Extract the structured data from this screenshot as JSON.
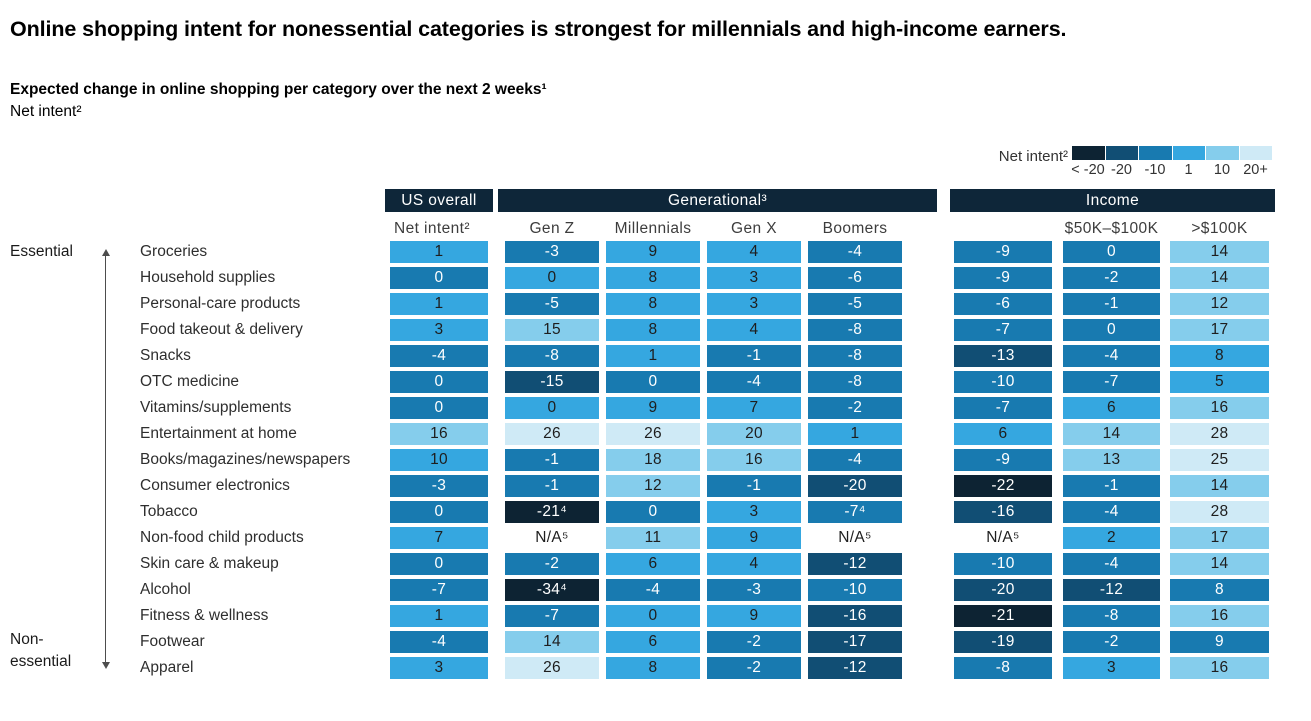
{
  "header": {
    "title": "Online shopping intent for nonessential categories is strongest for millennials and high-income earners.",
    "subtitle": "Expected change in online shopping per category over the next 2 weeks¹",
    "measure_label": "Net intent²"
  },
  "legend": {
    "label": "Net intent²",
    "buckets": [
      {
        "label": "< -20",
        "color": "#0d2333"
      },
      {
        "label": "-20",
        "color": "#114e74"
      },
      {
        "label": "-10",
        "color": "#187ab0"
      },
      {
        "label": "1",
        "color": "#35a7e0"
      },
      {
        "label": "10",
        "color": "#85cdec"
      },
      {
        "label": "20+",
        "color": "#cfeaf6"
      }
    ]
  },
  "axis_labels": {
    "top": "Essential",
    "bottom_line1": "Non-",
    "bottom_line2": "essential"
  },
  "column_groups": [
    {
      "label": "US overall",
      "columns": [
        "Net intent²"
      ]
    },
    {
      "label": "Generational³",
      "columns": [
        "Gen Z",
        "Millennials",
        "Gen X",
        "Boomers"
      ]
    },
    {
      "label": "Income",
      "columns": [
        "",
        "$50K–$100K",
        ">$100K"
      ]
    }
  ],
  "colors": {
    "header_band": "#0e2639",
    "cell_text_dark": "#1e1e1e",
    "cell_text_light": "#ffffff"
  },
  "chart_data": {
    "type": "heatmap",
    "title": "Expected change in online shopping per category over the next 2 weeks (Net intent)",
    "value_label": "Net intent²",
    "legend_position": "top-right",
    "columns": [
      "Net intent²",
      "Gen Z",
      "Millennials",
      "Gen X",
      "Boomers",
      "",
      "$50K–$100K",
      ">$100K"
    ],
    "tone_scale_labels": [
      "< -20",
      "-20",
      "-10",
      "1",
      "10",
      "20+"
    ],
    "rows": [
      {
        "category": "Groceries",
        "values": [
          "1",
          "-3",
          "9",
          "4",
          "-4",
          "-9",
          "0",
          "14"
        ],
        "tones": [
          4,
          3,
          4,
          4,
          3,
          3,
          3,
          5
        ]
      },
      {
        "category": "Household supplies",
        "values": [
          "0",
          "0",
          "8",
          "3",
          "-6",
          "-9",
          "-2",
          "14"
        ],
        "tones": [
          3,
          4,
          4,
          4,
          3,
          3,
          3,
          5
        ]
      },
      {
        "category": "Personal-care products",
        "values": [
          "1",
          "-5",
          "8",
          "3",
          "-5",
          "-6",
          "-1",
          "12"
        ],
        "tones": [
          4,
          3,
          4,
          4,
          3,
          3,
          3,
          5
        ]
      },
      {
        "category": "Food takeout & delivery",
        "values": [
          "3",
          "15",
          "8",
          "4",
          "-8",
          "-7",
          "0",
          "17"
        ],
        "tones": [
          4,
          5,
          4,
          4,
          3,
          3,
          3,
          5
        ]
      },
      {
        "category": "Snacks",
        "values": [
          "-4",
          "-8",
          "1",
          "-1",
          "-8",
          "-13",
          "-4",
          "8"
        ],
        "tones": [
          3,
          3,
          4,
          3,
          3,
          2,
          3,
          4
        ]
      },
      {
        "category": "OTC medicine",
        "values": [
          "0",
          "-15",
          "0",
          "-4",
          "-8",
          "-10",
          "-7",
          "5"
        ],
        "tones": [
          3,
          2,
          3,
          3,
          3,
          3,
          3,
          4
        ]
      },
      {
        "category": "Vitamins/supplements",
        "values": [
          "0",
          "0",
          "9",
          "7",
          "-2",
          "-7",
          "6",
          "16"
        ],
        "tones": [
          3,
          4,
          4,
          4,
          3,
          3,
          4,
          5
        ]
      },
      {
        "category": "Entertainment at home",
        "values": [
          "16",
          "26",
          "26",
          "20",
          "1",
          "6",
          "14",
          "28"
        ],
        "tones": [
          5,
          6,
          6,
          5,
          4,
          4,
          5,
          6
        ]
      },
      {
        "category": "Books/magazines/newspapers",
        "values": [
          "10",
          "-1",
          "18",
          "16",
          "-4",
          "-9",
          "13",
          "25"
        ],
        "tones": [
          4,
          3,
          5,
          5,
          3,
          3,
          5,
          6
        ]
      },
      {
        "category": "Consumer electronics",
        "values": [
          "-3",
          "-1",
          "12",
          "-1",
          "-20",
          "-22",
          "-1",
          "14"
        ],
        "tones": [
          3,
          3,
          5,
          3,
          2,
          1,
          3,
          5
        ]
      },
      {
        "category": "Tobacco",
        "values": [
          "0",
          "-21⁴",
          "0",
          "3",
          "-7⁴",
          "-16",
          "-4",
          "28"
        ],
        "tones": [
          3,
          1,
          3,
          4,
          3,
          2,
          3,
          6
        ]
      },
      {
        "category": "Non-food child products",
        "values": [
          "7",
          "N/A⁵",
          "11",
          "9",
          "N/A⁵",
          "N/A⁵",
          "2",
          "17"
        ],
        "tones": [
          4,
          0,
          5,
          4,
          0,
          0,
          4,
          5
        ]
      },
      {
        "category": "Skin care & makeup",
        "values": [
          "0",
          "-2",
          "6",
          "4",
          "-12",
          "-10",
          "-4",
          "14"
        ],
        "tones": [
          3,
          3,
          4,
          4,
          2,
          3,
          3,
          5
        ]
      },
      {
        "category": "Alcohol",
        "values": [
          "-7",
          "-34⁴",
          "-4",
          "-3",
          "-10",
          "-20",
          "-12",
          "8"
        ],
        "tones": [
          3,
          1,
          3,
          3,
          3,
          2,
          2,
          3
        ]
      },
      {
        "category": "Fitness & wellness",
        "values": [
          "1",
          "-7",
          "0",
          "9",
          "-16",
          "-21",
          "-8",
          "16"
        ],
        "tones": [
          4,
          3,
          4,
          4,
          2,
          1,
          3,
          5
        ]
      },
      {
        "category": "Footwear",
        "values": [
          "-4",
          "14",
          "6",
          "-2",
          "-17",
          "-19",
          "-2",
          "9"
        ],
        "tones": [
          3,
          5,
          4,
          3,
          2,
          2,
          3,
          3
        ]
      },
      {
        "category": "Apparel",
        "values": [
          "3",
          "26",
          "8",
          "-2",
          "-12",
          "-8",
          "3",
          "16"
        ],
        "tones": [
          4,
          6,
          4,
          3,
          2,
          3,
          4,
          5
        ]
      }
    ]
  }
}
